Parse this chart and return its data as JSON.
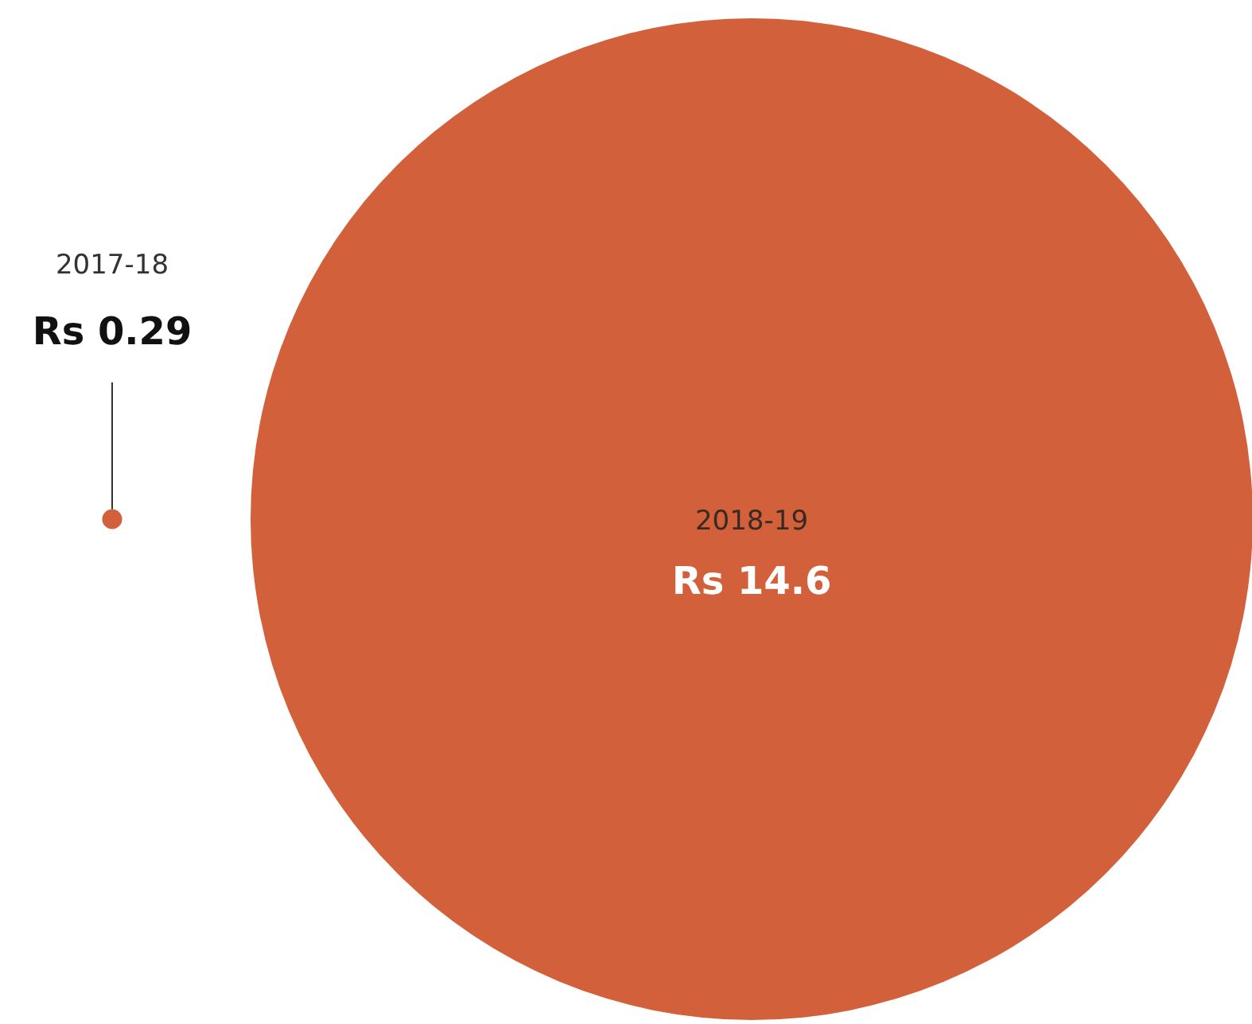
{
  "chart_data": {
    "type": "other",
    "categories": [
      "2017-18",
      "2018-19"
    ],
    "values": [
      0.29,
      14.6
    ],
    "value_labels": [
      "Rs 0.29",
      "Rs 14.6"
    ],
    "color": "#d2603a"
  }
}
